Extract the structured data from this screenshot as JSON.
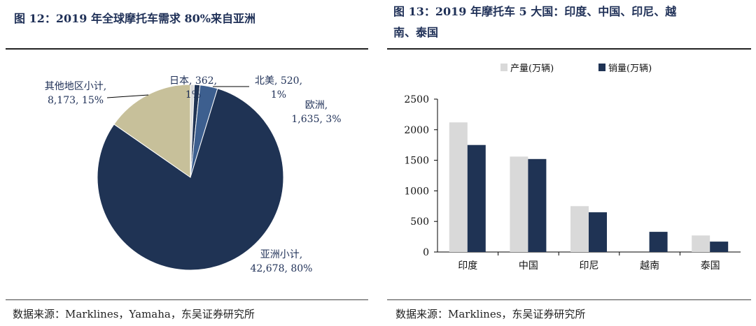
{
  "left_panel": {
    "title": "图 12：2019 年全球摩托车需求 80%来自亚洲",
    "source": "数据来源：Marklines，Yamaha，东吴证券研究所"
  },
  "right_panel": {
    "title_line1": "图 13：2019 年摩托车 5 大国：印度、中国、印尼、越",
    "title_line2": "南、泰国",
    "source": "数据来源：Marklines，东吴证券研究所"
  },
  "chart_data": [
    {
      "type": "pie",
      "title": "",
      "slices": [
        {
          "name": "亚洲小计",
          "value": 42678,
          "pct_label": "80%",
          "label_line1": "亚洲小计,",
          "label_line2": "42,678, 80%",
          "color": "#1f3354"
        },
        {
          "name": "其他地区小计",
          "value": 8173,
          "pct_label": "15%",
          "label_line1": "其他地区小计,",
          "label_line2": "8,173, 15%",
          "color": "#c7c09a"
        },
        {
          "name": "日本",
          "value": 362,
          "pct_label": "1%",
          "label_line1": "日本, 362,",
          "label_line2": "1%",
          "color": "#d9d9d9"
        },
        {
          "name": "北美",
          "value": 520,
          "pct_label": "1%",
          "label_line1": "北美, 520,",
          "label_line2": "1%",
          "color": "#1f3354"
        },
        {
          "name": "欧洲",
          "value": 1635,
          "pct_label": "3%",
          "label_line1": "欧洲,",
          "label_line2": "1,635, 3%",
          "color": "#3d5f8f"
        }
      ]
    },
    {
      "type": "bar",
      "title": "",
      "categories": [
        "印度",
        "中国",
        "印尼",
        "越南",
        "泰国"
      ],
      "series": [
        {
          "name": "产量(万辆)",
          "values": [
            2120,
            1560,
            750,
            0,
            270
          ],
          "color": "#d9d9d9"
        },
        {
          "name": "销量(万辆)",
          "values": [
            1750,
            1520,
            650,
            330,
            170
          ],
          "color": "#1f3354"
        }
      ],
      "ylim": [
        0,
        2500
      ],
      "yticks": [
        0,
        500,
        1000,
        1500,
        2000,
        2500
      ],
      "grid": false,
      "legend": "top-center"
    }
  ]
}
